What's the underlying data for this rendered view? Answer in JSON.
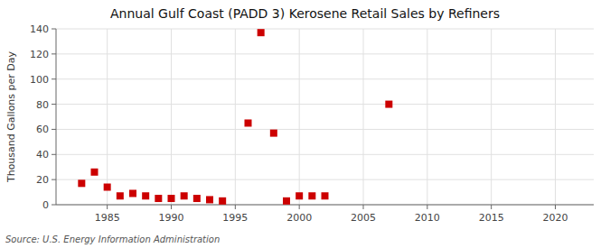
{
  "chart_data": {
    "type": "scatter",
    "title": "Annual Gulf Coast (PADD 3) Kerosene Retail Sales by Refiners",
    "ylabel": "Thousand Gallons per Day",
    "source": "Source: U.S. Energy Information Administration",
    "x": [
      1983,
      1984,
      1985,
      1986,
      1987,
      1988,
      1989,
      1990,
      1991,
      1992,
      1993,
      1994,
      1996,
      1997,
      1998,
      1999,
      2000,
      2001,
      2002,
      2007
    ],
    "values": [
      17,
      26,
      14,
      7,
      9,
      7,
      5,
      5,
      7,
      5,
      4,
      3,
      65,
      137,
      57,
      3,
      7,
      7,
      7,
      80
    ],
    "color": "#cc0000",
    "marker": "square",
    "xlim": [
      1981,
      2023
    ],
    "ylim": [
      0,
      140
    ],
    "xticks": [
      1985,
      1990,
      1995,
      2000,
      2005,
      2010,
      2015,
      2020
    ],
    "yticks": [
      0,
      20,
      40,
      60,
      80,
      100,
      120,
      140
    ],
    "grid": true
  }
}
